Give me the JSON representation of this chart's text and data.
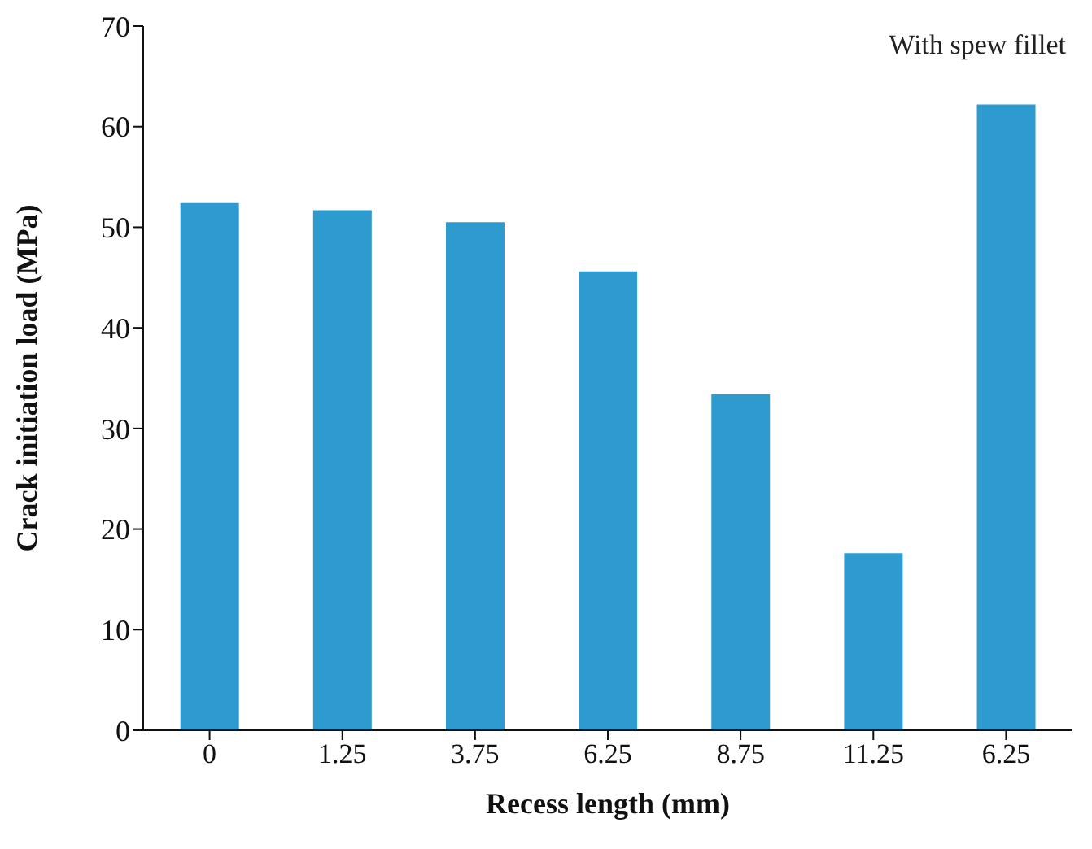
{
  "chart_data": {
    "type": "bar",
    "xlabel": "Recess length (mm)",
    "ylabel": "Crack initiation load (MPa)",
    "categories": [
      "0",
      "1.25",
      "3.75",
      "6.25",
      "8.75",
      "11.25",
      "6.25"
    ],
    "values": [
      52.4,
      51.7,
      50.5,
      45.6,
      33.4,
      17.6,
      62.2
    ],
    "color": "#2e9bd0",
    "ylim": [
      0,
      70
    ],
    "yticks": [
      0,
      10,
      20,
      30,
      40,
      50,
      60,
      70
    ],
    "grid": false,
    "annotations": [
      "With spew fillet"
    ]
  }
}
